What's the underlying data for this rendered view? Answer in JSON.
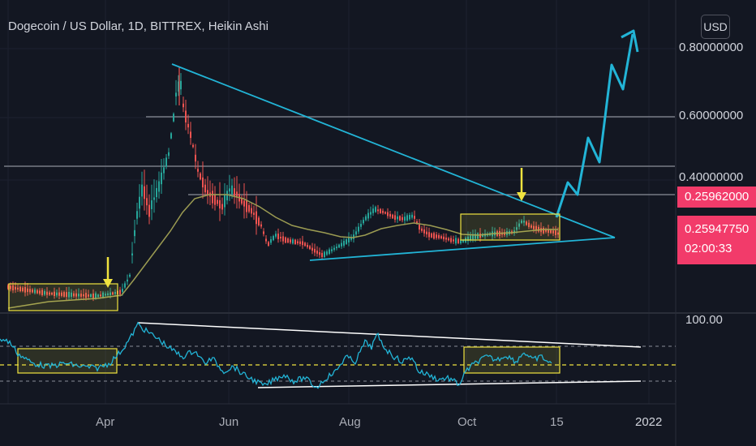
{
  "header": {
    "title": "Dogecoin / US Dollar, 1D, BITTREX, Heikin Ashi",
    "currency_button": "USD"
  },
  "price_axis": {
    "labels": [
      "0.80000000",
      "0.60000000",
      "0.40000000"
    ],
    "last_price": "0.25962000",
    "second_price": "0.25947750",
    "countdown": "02:00:33"
  },
  "rsi_axis": {
    "label": "100.00"
  },
  "time_axis": {
    "labels": [
      "Apr",
      "Jun",
      "Aug",
      "Oct",
      "15",
      "2022"
    ]
  },
  "colors": {
    "background": "#131722",
    "up_candle": "#26a69a",
    "down_candle": "#ef5350",
    "moving_average": "#9b9b52",
    "trendline": "#22b4d6",
    "highlight_box": "#f0e33f",
    "price_tag": "#f23b6a",
    "horizontal_levels": "#8a8e98",
    "rsi_line": "#22b4d6",
    "rsi_trendlines": "#ffffff"
  },
  "chart_data": {
    "type": "candlestick",
    "title": "Dogecoin / US Dollar, 1D, BITTREX, Heikin Ashi",
    "y_scale": "log",
    "price_ticks": [
      0.8,
      0.6,
      0.4
    ],
    "last_price": 0.25962,
    "x_ticks": [
      "Apr",
      "Jun",
      "Aug",
      "Oct",
      "15",
      "2022"
    ],
    "price_series_approx": [
      {
        "period": "early Mar 2021",
        "close": 0.05
      },
      {
        "period": "Apr 1 2021",
        "close": 0.06
      },
      {
        "period": "mid Apr 2021",
        "close": 0.38
      },
      {
        "period": "early May 2021",
        "high": 0.74
      },
      {
        "period": "Jun 2021",
        "close": 0.32
      },
      {
        "period": "Jul 2021",
        "close": 0.19
      },
      {
        "period": "Aug 2021",
        "close": 0.31
      },
      {
        "period": "Sep 2021",
        "close": 0.21
      },
      {
        "period": "Oct 2021",
        "close": 0.26
      }
    ],
    "horizontal_levels": [
      0.59,
      0.45,
      0.37
    ],
    "annotations": [
      "descending triangle resistance",
      "ascending support",
      "projected zigzag breakout",
      "accumulation boxes",
      "arrows"
    ],
    "rsi": {
      "top_label": "100.00"
    }
  }
}
